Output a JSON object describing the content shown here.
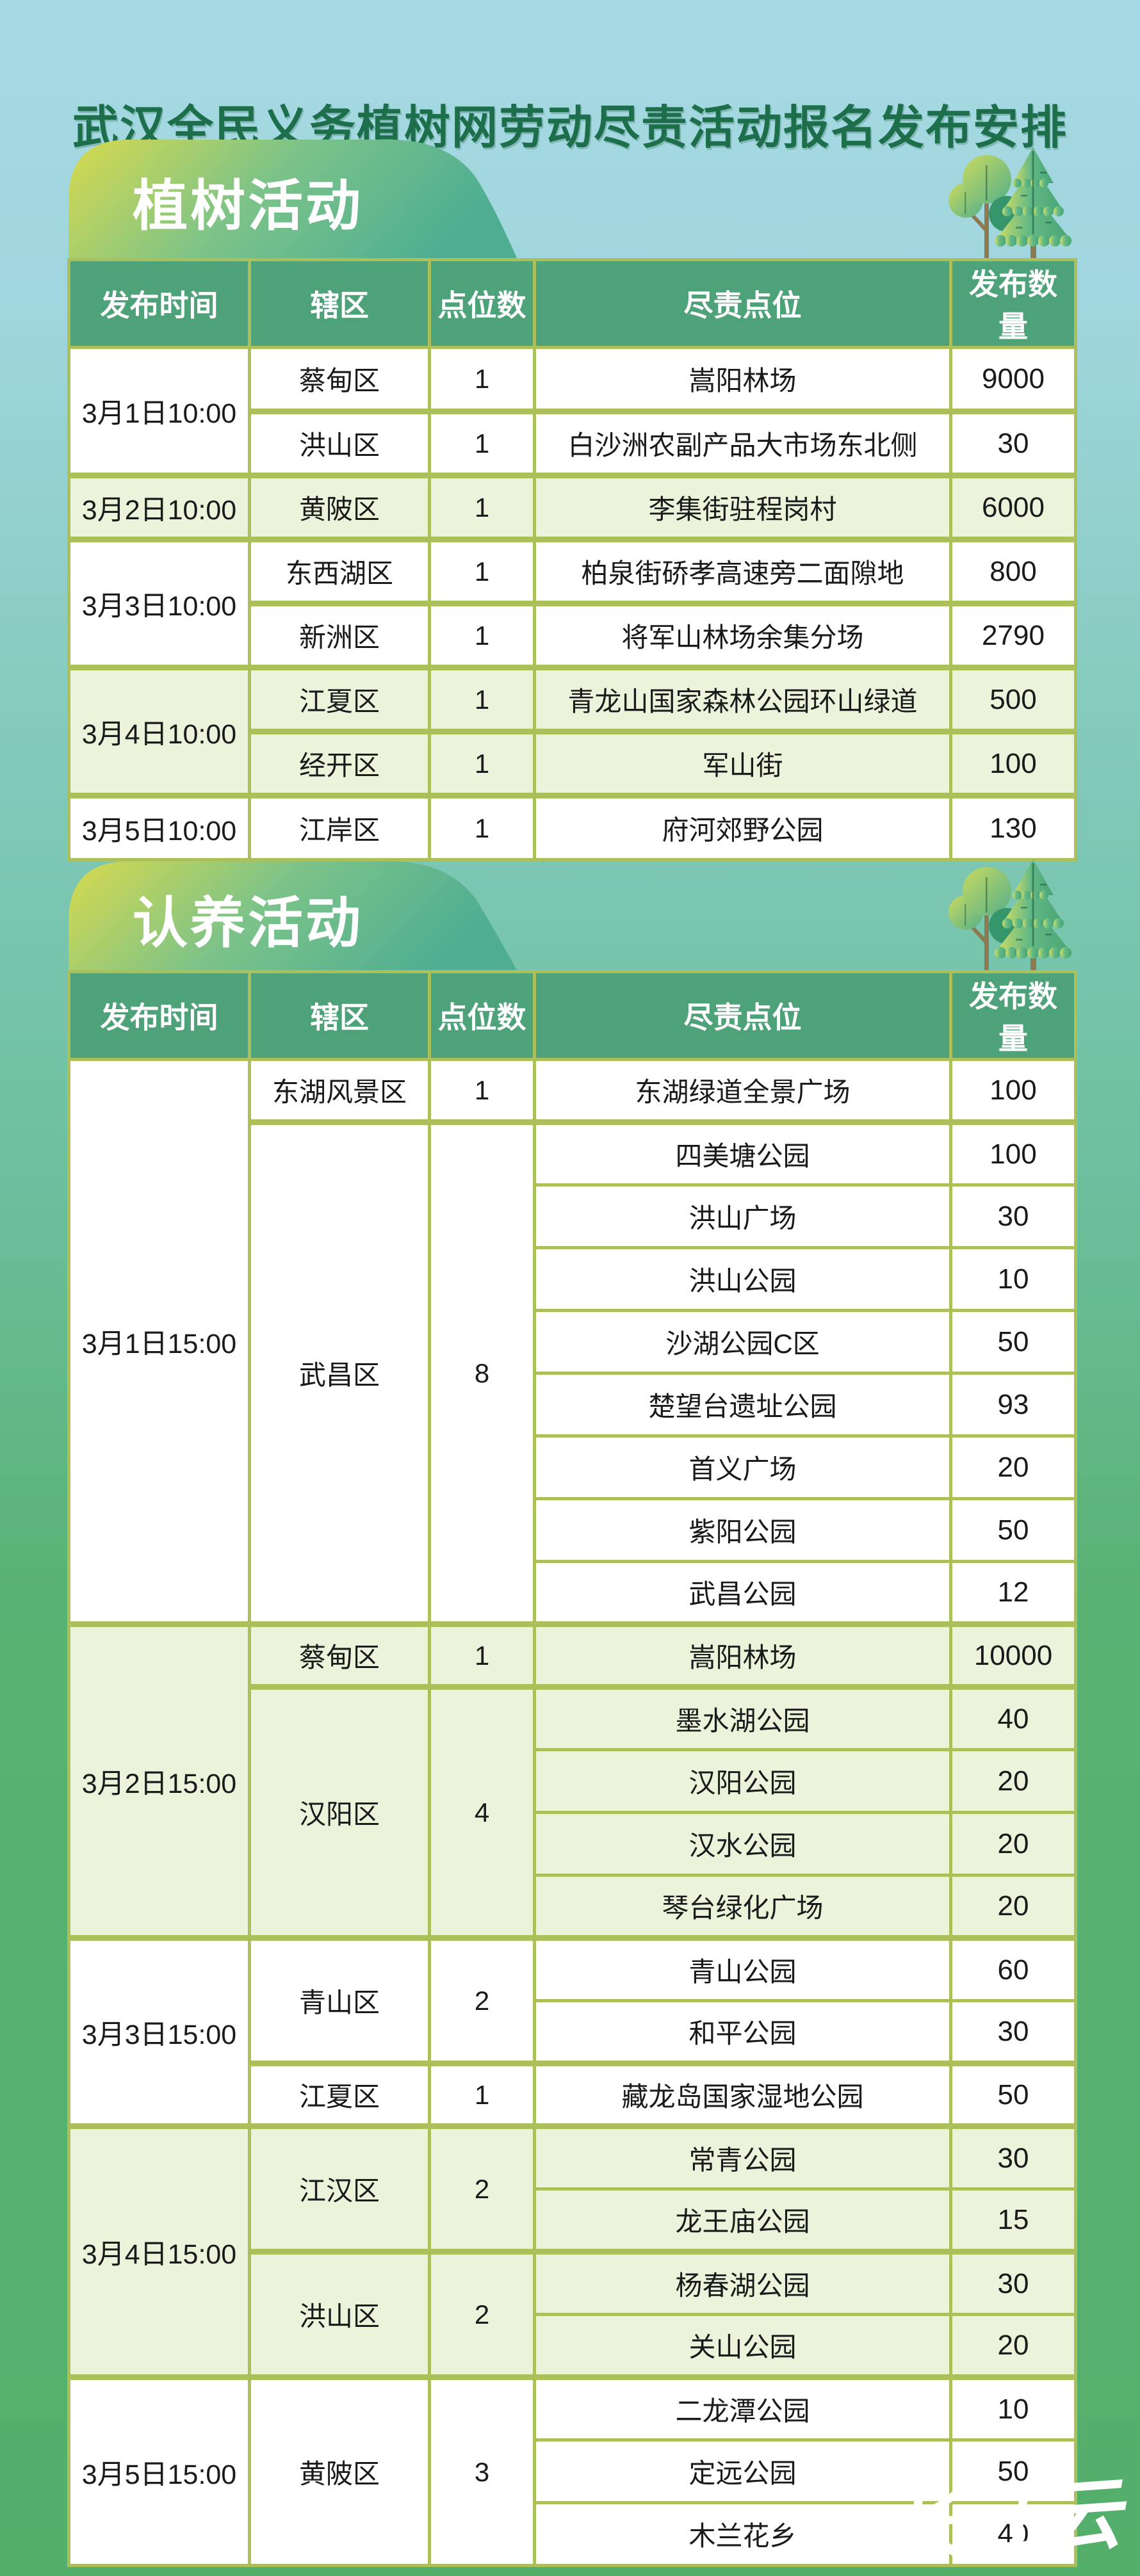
{
  "title": "武汉全民义务植树网劳动尽责活动报名发布安排",
  "watermark": "长江云",
  "columns": [
    "发布时间",
    "辖区",
    "点位数",
    "尽责点位",
    "发布数量"
  ],
  "colors": {
    "background_top": "#a7d9e3",
    "background_bottom": "#54af6b",
    "header_green": "#4da27a",
    "border_olive": "#abc05a",
    "row_alt_green": "#ebf3da",
    "title_green": "#1d6f4b",
    "badge_yellow": "#d8da4e",
    "badge_teal": "#4fae92"
  },
  "sections": [
    {
      "badge": "植树活动",
      "groups": [
        {
          "time": "3月1日10:00",
          "districts": [
            {
              "name": "蔡甸区",
              "points": "1",
              "sites": [
                {
                  "site": "嵩阳林场",
                  "qty": "9000"
                }
              ]
            },
            {
              "name": "洪山区",
              "points": "1",
              "sites": [
                {
                  "site": "白沙洲农副产品大市场东北侧",
                  "qty": "30"
                }
              ]
            }
          ]
        },
        {
          "time": "3月2日10:00",
          "districts": [
            {
              "name": "黄陂区",
              "points": "1",
              "sites": [
                {
                  "site": "李集街驻程岗村",
                  "qty": "6000"
                }
              ]
            }
          ]
        },
        {
          "time": "3月3日10:00",
          "districts": [
            {
              "name": "东西湖区",
              "points": "1",
              "sites": [
                {
                  "site": "柏泉街硚孝高速旁二面隙地",
                  "qty": "800"
                }
              ]
            },
            {
              "name": "新洲区",
              "points": "1",
              "sites": [
                {
                  "site": "将军山林场余集分场",
                  "qty": "2790"
                }
              ]
            }
          ]
        },
        {
          "time": "3月4日10:00",
          "districts": [
            {
              "name": "江夏区",
              "points": "1",
              "sites": [
                {
                  "site": "青龙山国家森林公园环山绿道",
                  "qty": "500"
                }
              ]
            },
            {
              "name": "经开区",
              "points": "1",
              "sites": [
                {
                  "site": "军山街",
                  "qty": "100"
                }
              ]
            }
          ]
        },
        {
          "time": "3月5日10:00",
          "districts": [
            {
              "name": "江岸区",
              "points": "1",
              "sites": [
                {
                  "site": "府河郊野公园",
                  "qty": "130"
                }
              ]
            }
          ]
        }
      ]
    },
    {
      "badge": "认养活动",
      "groups": [
        {
          "time": "3月1日15:00",
          "districts": [
            {
              "name": "东湖风景区",
              "points": "1",
              "sites": [
                {
                  "site": "东湖绿道全景广场",
                  "qty": "100"
                }
              ]
            },
            {
              "name": "武昌区",
              "points": "8",
              "sites": [
                {
                  "site": "四美塘公园",
                  "qty": "100"
                },
                {
                  "site": "洪山广场",
                  "qty": "30"
                },
                {
                  "site": "洪山公园",
                  "qty": "10"
                },
                {
                  "site": "沙湖公园C区",
                  "qty": "50"
                },
                {
                  "site": "楚望台遗址公园",
                  "qty": "93"
                },
                {
                  "site": "首义广场",
                  "qty": "20"
                },
                {
                  "site": "紫阳公园",
                  "qty": "50"
                },
                {
                  "site": "武昌公园",
                  "qty": "12"
                }
              ]
            }
          ]
        },
        {
          "time": "3月2日15:00",
          "districts": [
            {
              "name": "蔡甸区",
              "points": "1",
              "sites": [
                {
                  "site": "嵩阳林场",
                  "qty": "10000"
                }
              ]
            },
            {
              "name": "汉阳区",
              "points": "4",
              "sites": [
                {
                  "site": "墨水湖公园",
                  "qty": "40"
                },
                {
                  "site": "汉阳公园",
                  "qty": "20"
                },
                {
                  "site": "汉水公园",
                  "qty": "20"
                },
                {
                  "site": "琴台绿化广场",
                  "qty": "20"
                }
              ]
            }
          ]
        },
        {
          "time": "3月3日15:00",
          "districts": [
            {
              "name": "青山区",
              "points": "2",
              "sites": [
                {
                  "site": "青山公园",
                  "qty": "60"
                },
                {
                  "site": "和平公园",
                  "qty": "30"
                }
              ]
            },
            {
              "name": "江夏区",
              "points": "1",
              "sites": [
                {
                  "site": "藏龙岛国家湿地公园",
                  "qty": "50"
                }
              ]
            }
          ]
        },
        {
          "time": "3月4日15:00",
          "districts": [
            {
              "name": "江汉区",
              "points": "2",
              "sites": [
                {
                  "site": "常青公园",
                  "qty": "30"
                },
                {
                  "site": "龙王庙公园",
                  "qty": "15"
                }
              ]
            },
            {
              "name": "洪山区",
              "points": "2",
              "sites": [
                {
                  "site": "杨春湖公园",
                  "qty": "30"
                },
                {
                  "site": "关山公园",
                  "qty": "20"
                }
              ]
            }
          ]
        },
        {
          "time": "3月5日15:00",
          "districts": [
            {
              "name": "黄陂区",
              "points": "3",
              "sites": [
                {
                  "site": "二龙潭公园",
                  "qty": "10"
                },
                {
                  "site": "定远公园",
                  "qty": "50"
                },
                {
                  "site": "木兰花乡",
                  "qty": "40"
                }
              ]
            }
          ]
        }
      ]
    }
  ]
}
